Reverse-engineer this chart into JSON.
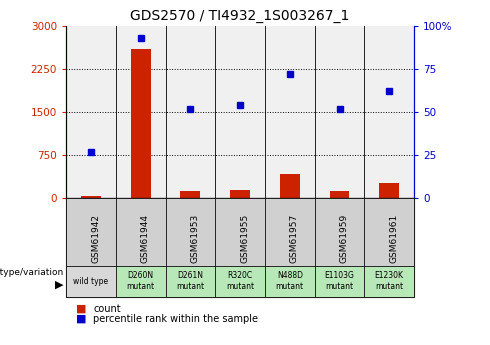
{
  "title": "GDS2570 / TI4932_1S003267_1",
  "samples": [
    "GSM61942",
    "GSM61944",
    "GSM61953",
    "GSM61955",
    "GSM61957",
    "GSM61959",
    "GSM61961"
  ],
  "genotype": [
    "wild type",
    "D260N\nmutant",
    "D261N\nmutant",
    "R320C\nmutant",
    "N488D\nmutant",
    "E1103G\nmutant",
    "E1230K\nmutant"
  ],
  "counts": [
    50,
    2600,
    130,
    150,
    420,
    120,
    270
  ],
  "percentiles": [
    27,
    93,
    52,
    54,
    72,
    52,
    62
  ],
  "bar_color": "#cc2200",
  "dot_color": "#0000cc",
  "ylim_left": [
    0,
    3000
  ],
  "ylim_right": [
    0,
    100
  ],
  "yticks_left": [
    0,
    750,
    1500,
    2250,
    3000
  ],
  "yticks_right": [
    0,
    25,
    50,
    75,
    100
  ],
  "ytick_labels_left": [
    "0",
    "750",
    "1500",
    "2250",
    "3000"
  ],
  "ytick_labels_right": [
    "0",
    "25",
    "50",
    "75",
    "100%"
  ],
  "bg_plot": "#f0f0f0",
  "bg_genotype_wt": "#d8d8d8",
  "bg_genotype_mut": "#b8e8b8",
  "bg_sample_row": "#d0d0d0",
  "title_fontsize": 10,
  "tick_fontsize": 7.5,
  "left_tick_color": "#cc2200",
  "right_tick_color": "#0000cc",
  "legend_count_color": "#cc2200",
  "legend_dot_color": "#0000cc"
}
